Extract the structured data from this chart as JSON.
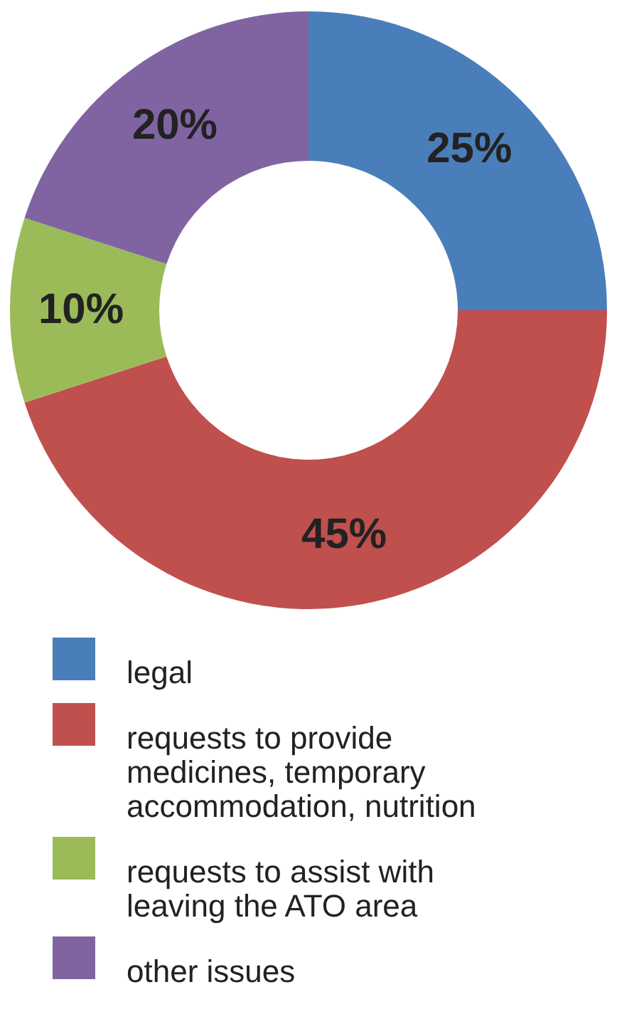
{
  "chart_data": {
    "type": "donut",
    "categories": [
      "legal",
      "requests to provide medicines, temporary accommodation, nutrition",
      "requests to assist with leaving the ATO area",
      "other issues"
    ],
    "values": [
      25,
      45,
      10,
      20
    ],
    "colors": [
      "#4a7ebb",
      "#c0504d",
      "#9bbb59",
      "#8064a2"
    ],
    "value_labels": [
      "25%",
      "45%",
      "10%",
      "20%"
    ],
    "legend": "bottom"
  }
}
